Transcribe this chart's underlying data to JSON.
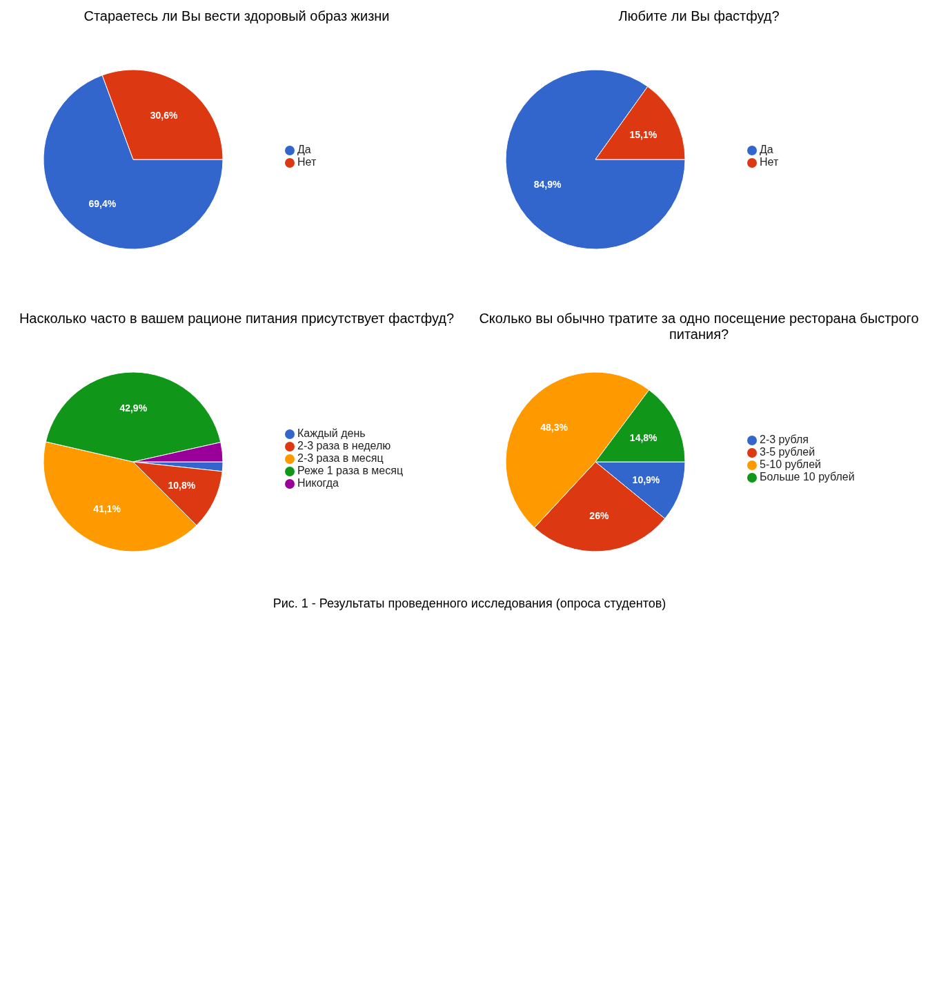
{
  "chart_data": [
    {
      "type": "pie",
      "title": "Стараетесь ли Вы вести здоровый образ жизни",
      "categories": [
        "Да",
        "Нет"
      ],
      "values": [
        69.4,
        30.6
      ],
      "colors": [
        "#3366cc",
        "#dc3912"
      ],
      "value_labels": [
        "69,4%",
        "30,6%"
      ],
      "legend": "right"
    },
    {
      "type": "pie",
      "title": "Любите ли Вы фастфуд?",
      "categories": [
        "Да",
        "Нет"
      ],
      "values": [
        84.9,
        15.1
      ],
      "colors": [
        "#3366cc",
        "#dc3912"
      ],
      "value_labels": [
        "84,9%",
        "15,1%"
      ],
      "legend": "right"
    },
    {
      "type": "pie",
      "title": "Насколько часто в вашем рационе питания присутствует фастфуд?",
      "categories": [
        "Каждый день",
        "2-3 раза в неделю",
        "2-3 раза в месяц",
        "Реже 1 раза в месяц",
        "Никогда"
      ],
      "values": [
        1.7,
        10.8,
        41.1,
        42.9,
        3.5
      ],
      "colors": [
        "#3366cc",
        "#dc3912",
        "#ff9900",
        "#109618",
        "#990099"
      ],
      "value_labels": [
        null,
        "10,8%",
        "41,1%",
        "42,9%",
        null
      ],
      "legend": "right"
    },
    {
      "type": "pie",
      "title": "Сколько вы обычно тратите за одно посещение ресторана быстрого питания?",
      "categories": [
        "2-3 рубля",
        "3-5 рублей",
        "5-10 рублей",
        "Больше 10 рублей"
      ],
      "values": [
        10.9,
        26,
        48.3,
        14.8
      ],
      "colors": [
        "#3366cc",
        "#dc3912",
        "#ff9900",
        "#109618"
      ],
      "value_labels": [
        "10,9%",
        "26%",
        "48,3%",
        "14,8%"
      ],
      "legend": "right",
      "annotations": [
        "Рис. 1 - Результаты проведенного исследования (опроса студентов)"
      ]
    }
  ]
}
